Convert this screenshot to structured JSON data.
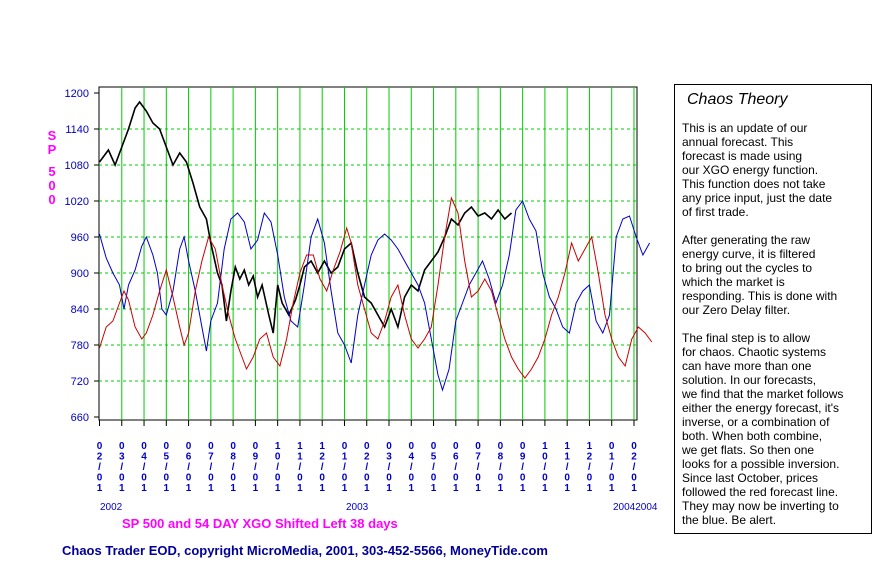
{
  "chart_data": {
    "type": "line",
    "ylabel": "SP 500",
    "ylim": [
      660,
      1200
    ],
    "y_ticks": [
      "1200",
      "1140",
      "1080",
      "1020",
      "960",
      "900",
      "840",
      "780",
      "720",
      "660"
    ],
    "x_ticks": [
      [
        "0",
        "2",
        "/",
        "0",
        "1"
      ],
      [
        "0",
        "3",
        "/",
        "0",
        "1"
      ],
      [
        "0",
        "4",
        "/",
        "0",
        "1"
      ],
      [
        "0",
        "5",
        "/",
        "0",
        "1"
      ],
      [
        "0",
        "6",
        "/",
        "0",
        "1"
      ],
      [
        "0",
        "7",
        "/",
        "0",
        "1"
      ],
      [
        "0",
        "8",
        "/",
        "0",
        "1"
      ],
      [
        "0",
        "9",
        "/",
        "0",
        "1"
      ],
      [
        "1",
        "0",
        "/",
        "0",
        "1"
      ],
      [
        "1",
        "1",
        "/",
        "0",
        "1"
      ],
      [
        "1",
        "2",
        "/",
        "0",
        "1"
      ],
      [
        "0",
        "1",
        "/",
        "0",
        "1"
      ],
      [
        "0",
        "2",
        "/",
        "0",
        "1"
      ],
      [
        "0",
        "3",
        "/",
        "0",
        "1"
      ],
      [
        "0",
        "4",
        "/",
        "0",
        "1"
      ],
      [
        "0",
        "5",
        "/",
        "0",
        "1"
      ],
      [
        "0",
        "6",
        "/",
        "0",
        "1"
      ],
      [
        "0",
        "7",
        "/",
        "0",
        "1"
      ],
      [
        "0",
        "8",
        "/",
        "0",
        "1"
      ],
      [
        "0",
        "9",
        "/",
        "0",
        "1"
      ],
      [
        "1",
        "0",
        "/",
        "0",
        "1"
      ],
      [
        "1",
        "1",
        "/",
        "0",
        "1"
      ],
      [
        "1",
        "2",
        "/",
        "0",
        "1"
      ],
      [
        "0",
        "1",
        "/",
        "0",
        "1"
      ],
      [
        "0",
        "2",
        "/",
        "0",
        "1"
      ]
    ],
    "year_labels": [
      "2002",
      "2003",
      "20042004"
    ],
    "grid": true,
    "series": [
      {
        "key": "sp500",
        "color": "#000000",
        "points": [
          [
            0,
            1085
          ],
          [
            0.4,
            1105
          ],
          [
            0.7,
            1080
          ],
          [
            1,
            1110
          ],
          [
            1.3,
            1140
          ],
          [
            1.6,
            1175
          ],
          [
            1.8,
            1185
          ],
          [
            2.1,
            1170
          ],
          [
            2.4,
            1150
          ],
          [
            2.7,
            1140
          ],
          [
            3,
            1110
          ],
          [
            3.3,
            1080
          ],
          [
            3.6,
            1100
          ],
          [
            3.9,
            1085
          ],
          [
            4.2,
            1050
          ],
          [
            4.5,
            1010
          ],
          [
            4.8,
            990
          ],
          [
            5.0,
            950
          ],
          [
            5.3,
            900
          ],
          [
            5.5,
            880
          ],
          [
            5.7,
            820
          ],
          [
            5.9,
            870
          ],
          [
            6.1,
            910
          ],
          [
            6.3,
            890
          ],
          [
            6.5,
            905
          ],
          [
            6.7,
            880
          ],
          [
            6.9,
            895
          ],
          [
            7.1,
            860
          ],
          [
            7.3,
            880
          ],
          [
            7.6,
            830
          ],
          [
            7.8,
            800
          ],
          [
            8.0,
            880
          ],
          [
            8.2,
            850
          ],
          [
            8.5,
            830
          ],
          [
            8.8,
            855
          ],
          [
            9.0,
            880
          ],
          [
            9.2,
            910
          ],
          [
            9.5,
            920
          ],
          [
            9.8,
            900
          ],
          [
            10.1,
            920
          ],
          [
            10.4,
            900
          ],
          [
            10.7,
            910
          ],
          [
            11.0,
            940
          ],
          [
            11.3,
            950
          ],
          [
            11.6,
            900
          ],
          [
            11.9,
            860
          ],
          [
            12.2,
            850
          ],
          [
            12.5,
            830
          ],
          [
            12.8,
            810
          ],
          [
            13.1,
            840
          ],
          [
            13.4,
            810
          ],
          [
            13.7,
            860
          ],
          [
            14.0,
            880
          ],
          [
            14.3,
            870
          ],
          [
            14.6,
            905
          ],
          [
            14.9,
            920
          ],
          [
            15.2,
            935
          ],
          [
            15.5,
            960
          ],
          [
            15.8,
            990
          ],
          [
            16.1,
            980
          ],
          [
            16.4,
            1000
          ],
          [
            16.7,
            1010
          ],
          [
            17.0,
            995
          ],
          [
            17.3,
            1000
          ],
          [
            17.6,
            990
          ],
          [
            17.9,
            1005
          ],
          [
            18.2,
            990
          ],
          [
            18.5,
            1000
          ]
        ]
      },
      {
        "key": "blue_forecast",
        "color": "#0000cc",
        "points": [
          [
            0,
            965
          ],
          [
            0.3,
            925
          ],
          [
            0.6,
            900
          ],
          [
            0.9,
            880
          ],
          [
            1.1,
            840
          ],
          [
            1.3,
            880
          ],
          [
            1.6,
            905
          ],
          [
            1.9,
            945
          ],
          [
            2.1,
            960
          ],
          [
            2.4,
            930
          ],
          [
            2.6,
            900
          ],
          [
            2.8,
            840
          ],
          [
            3.0,
            830
          ],
          [
            3.3,
            870
          ],
          [
            3.6,
            940
          ],
          [
            3.8,
            960
          ],
          [
            4.0,
            920
          ],
          [
            4.3,
            870
          ],
          [
            4.6,
            810
          ],
          [
            4.8,
            770
          ],
          [
            5.0,
            820
          ],
          [
            5.3,
            850
          ],
          [
            5.6,
            940
          ],
          [
            5.9,
            990
          ],
          [
            6.2,
            1000
          ],
          [
            6.5,
            985
          ],
          [
            6.8,
            940
          ],
          [
            7.1,
            955
          ],
          [
            7.4,
            1000
          ],
          [
            7.7,
            985
          ],
          [
            8.0,
            930
          ],
          [
            8.3,
            860
          ],
          [
            8.6,
            820
          ],
          [
            8.9,
            810
          ],
          [
            9.2,
            880
          ],
          [
            9.5,
            960
          ],
          [
            9.8,
            990
          ],
          [
            10.1,
            950
          ],
          [
            10.4,
            870
          ],
          [
            10.7,
            800
          ],
          [
            11.0,
            780
          ],
          [
            11.3,
            750
          ],
          [
            11.6,
            830
          ],
          [
            11.9,
            880
          ],
          [
            12.2,
            930
          ],
          [
            12.5,
            955
          ],
          [
            12.8,
            965
          ],
          [
            13.1,
            955
          ],
          [
            13.4,
            940
          ],
          [
            13.7,
            920
          ],
          [
            14.0,
            900
          ],
          [
            14.3,
            880
          ],
          [
            14.6,
            850
          ],
          [
            14.9,
            790
          ],
          [
            15.2,
            730
          ],
          [
            15.4,
            705
          ],
          [
            15.7,
            740
          ],
          [
            16.0,
            820
          ],
          [
            16.3,
            850
          ],
          [
            16.6,
            880
          ],
          [
            16.9,
            900
          ],
          [
            17.2,
            920
          ],
          [
            17.5,
            890
          ],
          [
            17.8,
            850
          ],
          [
            18.1,
            880
          ],
          [
            18.4,
            930
          ],
          [
            18.7,
            1005
          ],
          [
            19.0,
            1020
          ],
          [
            19.3,
            990
          ],
          [
            19.6,
            970
          ],
          [
            19.9,
            900
          ],
          [
            20.2,
            860
          ],
          [
            20.5,
            840
          ],
          [
            20.8,
            810
          ],
          [
            21.1,
            800
          ],
          [
            21.4,
            850
          ],
          [
            21.7,
            870
          ],
          [
            22.0,
            880
          ],
          [
            22.3,
            820
          ],
          [
            22.6,
            800
          ],
          [
            22.9,
            830
          ],
          [
            23.2,
            960
          ],
          [
            23.5,
            990
          ],
          [
            23.8,
            995
          ],
          [
            24.1,
            960
          ],
          [
            24.4,
            930
          ],
          [
            24.7,
            950
          ]
        ]
      },
      {
        "key": "red_forecast",
        "color": "#cc0000",
        "points": [
          [
            0,
            775
          ],
          [
            0.3,
            810
          ],
          [
            0.6,
            820
          ],
          [
            0.9,
            850
          ],
          [
            1.1,
            870
          ],
          [
            1.3,
            855
          ],
          [
            1.6,
            810
          ],
          [
            1.9,
            790
          ],
          [
            2.1,
            800
          ],
          [
            2.4,
            830
          ],
          [
            2.7,
            870
          ],
          [
            3.0,
            905
          ],
          [
            3.3,
            860
          ],
          [
            3.6,
            810
          ],
          [
            3.8,
            780
          ],
          [
            4.0,
            800
          ],
          [
            4.3,
            870
          ],
          [
            4.6,
            920
          ],
          [
            4.9,
            960
          ],
          [
            5.2,
            940
          ],
          [
            5.5,
            880
          ],
          [
            5.8,
            830
          ],
          [
            6.1,
            790
          ],
          [
            6.4,
            760
          ],
          [
            6.6,
            740
          ],
          [
            6.9,
            760
          ],
          [
            7.2,
            790
          ],
          [
            7.5,
            800
          ],
          [
            7.8,
            760
          ],
          [
            8.1,
            745
          ],
          [
            8.4,
            790
          ],
          [
            8.7,
            850
          ],
          [
            9.0,
            900
          ],
          [
            9.3,
            930
          ],
          [
            9.6,
            930
          ],
          [
            9.9,
            890
          ],
          [
            10.2,
            870
          ],
          [
            10.5,
            905
          ],
          [
            10.8,
            935
          ],
          [
            11.1,
            975
          ],
          [
            11.3,
            950
          ],
          [
            11.6,
            880
          ],
          [
            11.9,
            840
          ],
          [
            12.2,
            800
          ],
          [
            12.5,
            790
          ],
          [
            12.8,
            820
          ],
          [
            13.1,
            860
          ],
          [
            13.4,
            880
          ],
          [
            13.7,
            830
          ],
          [
            14.0,
            790
          ],
          [
            14.3,
            775
          ],
          [
            14.6,
            790
          ],
          [
            14.9,
            810
          ],
          [
            15.2,
            880
          ],
          [
            15.5,
            960
          ],
          [
            15.8,
            1025
          ],
          [
            16.1,
            1000
          ],
          [
            16.4,
            920
          ],
          [
            16.7,
            860
          ],
          [
            17.0,
            870
          ],
          [
            17.3,
            890
          ],
          [
            17.6,
            870
          ],
          [
            17.9,
            830
          ],
          [
            18.2,
            790
          ],
          [
            18.5,
            760
          ],
          [
            18.8,
            740
          ],
          [
            19.1,
            725
          ],
          [
            19.4,
            740
          ],
          [
            19.7,
            760
          ],
          [
            20.0,
            790
          ],
          [
            20.3,
            830
          ],
          [
            20.6,
            860
          ],
          [
            20.9,
            900
          ],
          [
            21.2,
            950
          ],
          [
            21.5,
            920
          ],
          [
            21.8,
            940
          ],
          [
            22.1,
            960
          ],
          [
            22.4,
            900
          ],
          [
            22.7,
            830
          ],
          [
            23.0,
            790
          ],
          [
            23.3,
            760
          ],
          [
            23.6,
            745
          ],
          [
            23.9,
            790
          ],
          [
            24.2,
            810
          ],
          [
            24.5,
            800
          ],
          [
            24.8,
            785
          ]
        ]
      }
    ]
  },
  "subtitle": "SP 500 and 54 DAY XGO Shifted Left 38 days",
  "copyright": "Chaos Trader EOD, copyright MicroMedia, 2001, 303-452-5566, MoneyTide.com",
  "sidebar": {
    "title": "Chaos Theory",
    "paragraphs": [
      "This is an update of our\nannual forecast. This\nforecast is made using\nour XGO energy function.\nThis function does not take\nany price input, just the date\nof first trade.",
      "After generating the raw\nenergy curve, it is filtered\nto bring out the cycles to\nwhich the market is\nresponding. This is done with\nour Zero Delay filter.",
      "The final step is to allow\nfor chaos. Chaotic systems\ncan have more than one\nsolution. In our forecasts,\nwe find that the market follows\neither the energy forecast, it's\ninverse, or a combination of\nboth. When both combine,\nwe get flats. So then one\nlooks for a possible inversion.\nSince last October, prices\nfollowed the red forecast line.\nThey may now be inverting to\nthe blue. Be alert."
    ]
  }
}
